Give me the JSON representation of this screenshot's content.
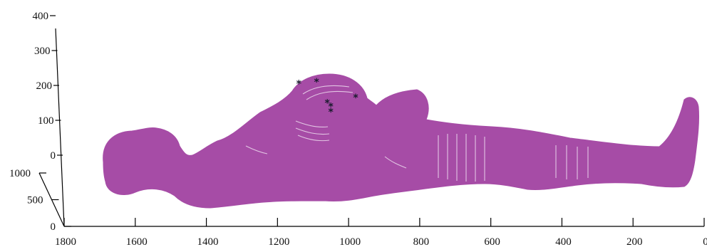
{
  "chart_data": {
    "type": "scatter",
    "projection": "3d",
    "title": "",
    "xlabel": "",
    "ylabel": "",
    "zlabel": "",
    "x_ticks": [
      1800,
      1600,
      1400,
      1200,
      1000,
      800,
      600,
      400,
      200,
      0
    ],
    "y_ticks": [
      0,
      500,
      1000
    ],
    "z_ticks": [
      0,
      100,
      200,
      300,
      400
    ],
    "xlim": [
      1800,
      0
    ],
    "ylim": [
      0,
      1000
    ],
    "zlim": [
      0,
      400
    ],
    "grid": false,
    "series": [
      {
        "name": "",
        "marker": "dot",
        "color": "#a64ca6",
        "points": []
      },
      {
        "name": "",
        "marker": "*",
        "color": "#1a1a2e",
        "points": [
          [
            1140,
            500,
            205
          ],
          [
            1090,
            500,
            210
          ],
          [
            1060,
            500,
            150
          ],
          [
            1050,
            500,
            140
          ],
          [
            1050,
            500,
            125
          ],
          [
            980,
            500,
            165
          ]
        ]
      }
    ]
  }
}
